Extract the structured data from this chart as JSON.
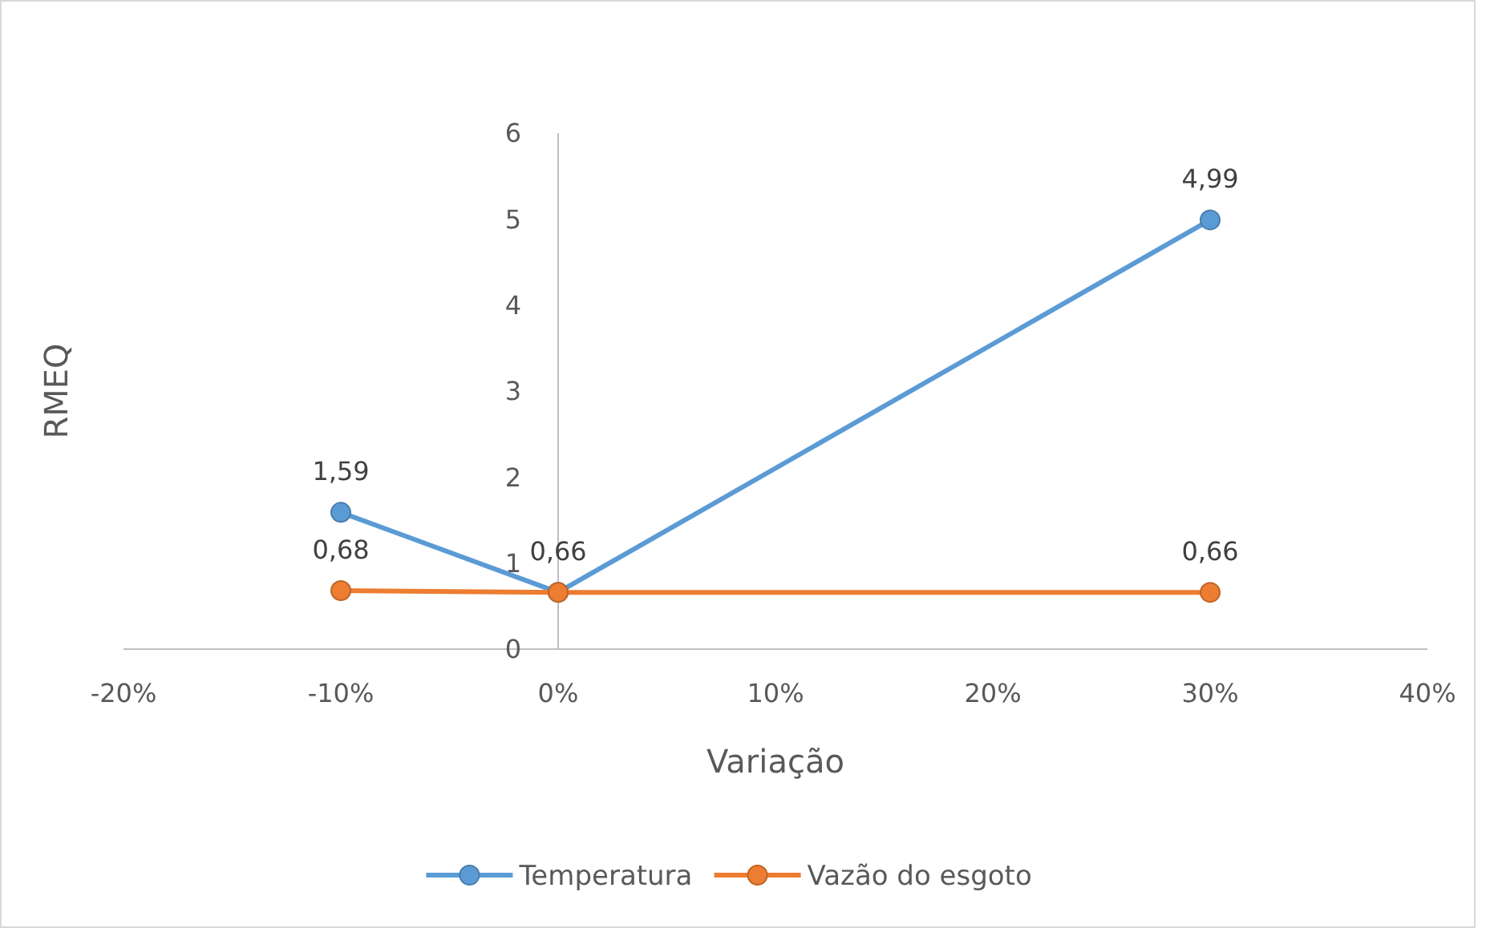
{
  "chart_data": {
    "type": "line",
    "xlabel": "Variação",
    "ylabel": "RMEQ",
    "x": [
      -10,
      0,
      30
    ],
    "series": [
      {
        "name": "Temperatura",
        "color": "#5b9bd5",
        "values": [
          1.59,
          0.66,
          4.99
        ],
        "value_labels": [
          "1,59",
          "0,66",
          "4,99"
        ]
      },
      {
        "name": "Vazão do esgoto",
        "color": "#ed7d31",
        "values": [
          0.68,
          0.66,
          0.66
        ],
        "value_labels": [
          "0,68",
          null,
          "0,66"
        ]
      }
    ],
    "xlim": [
      -20,
      40
    ],
    "xticks": [
      {
        "value": -20,
        "label": "-20%"
      },
      {
        "value": -10,
        "label": "-10%"
      },
      {
        "value": 0,
        "label": "0%"
      },
      {
        "value": 10,
        "label": "10%"
      },
      {
        "value": 20,
        "label": "20%"
      },
      {
        "value": 30,
        "label": "30%"
      },
      {
        "value": 40,
        "label": "40%"
      }
    ],
    "ylim": [
      0,
      6
    ],
    "yticks": [
      0,
      1,
      2,
      3,
      4,
      5,
      6
    ],
    "marker": "circle",
    "line_style": "solid",
    "grid": false,
    "legend": "bottom"
  }
}
